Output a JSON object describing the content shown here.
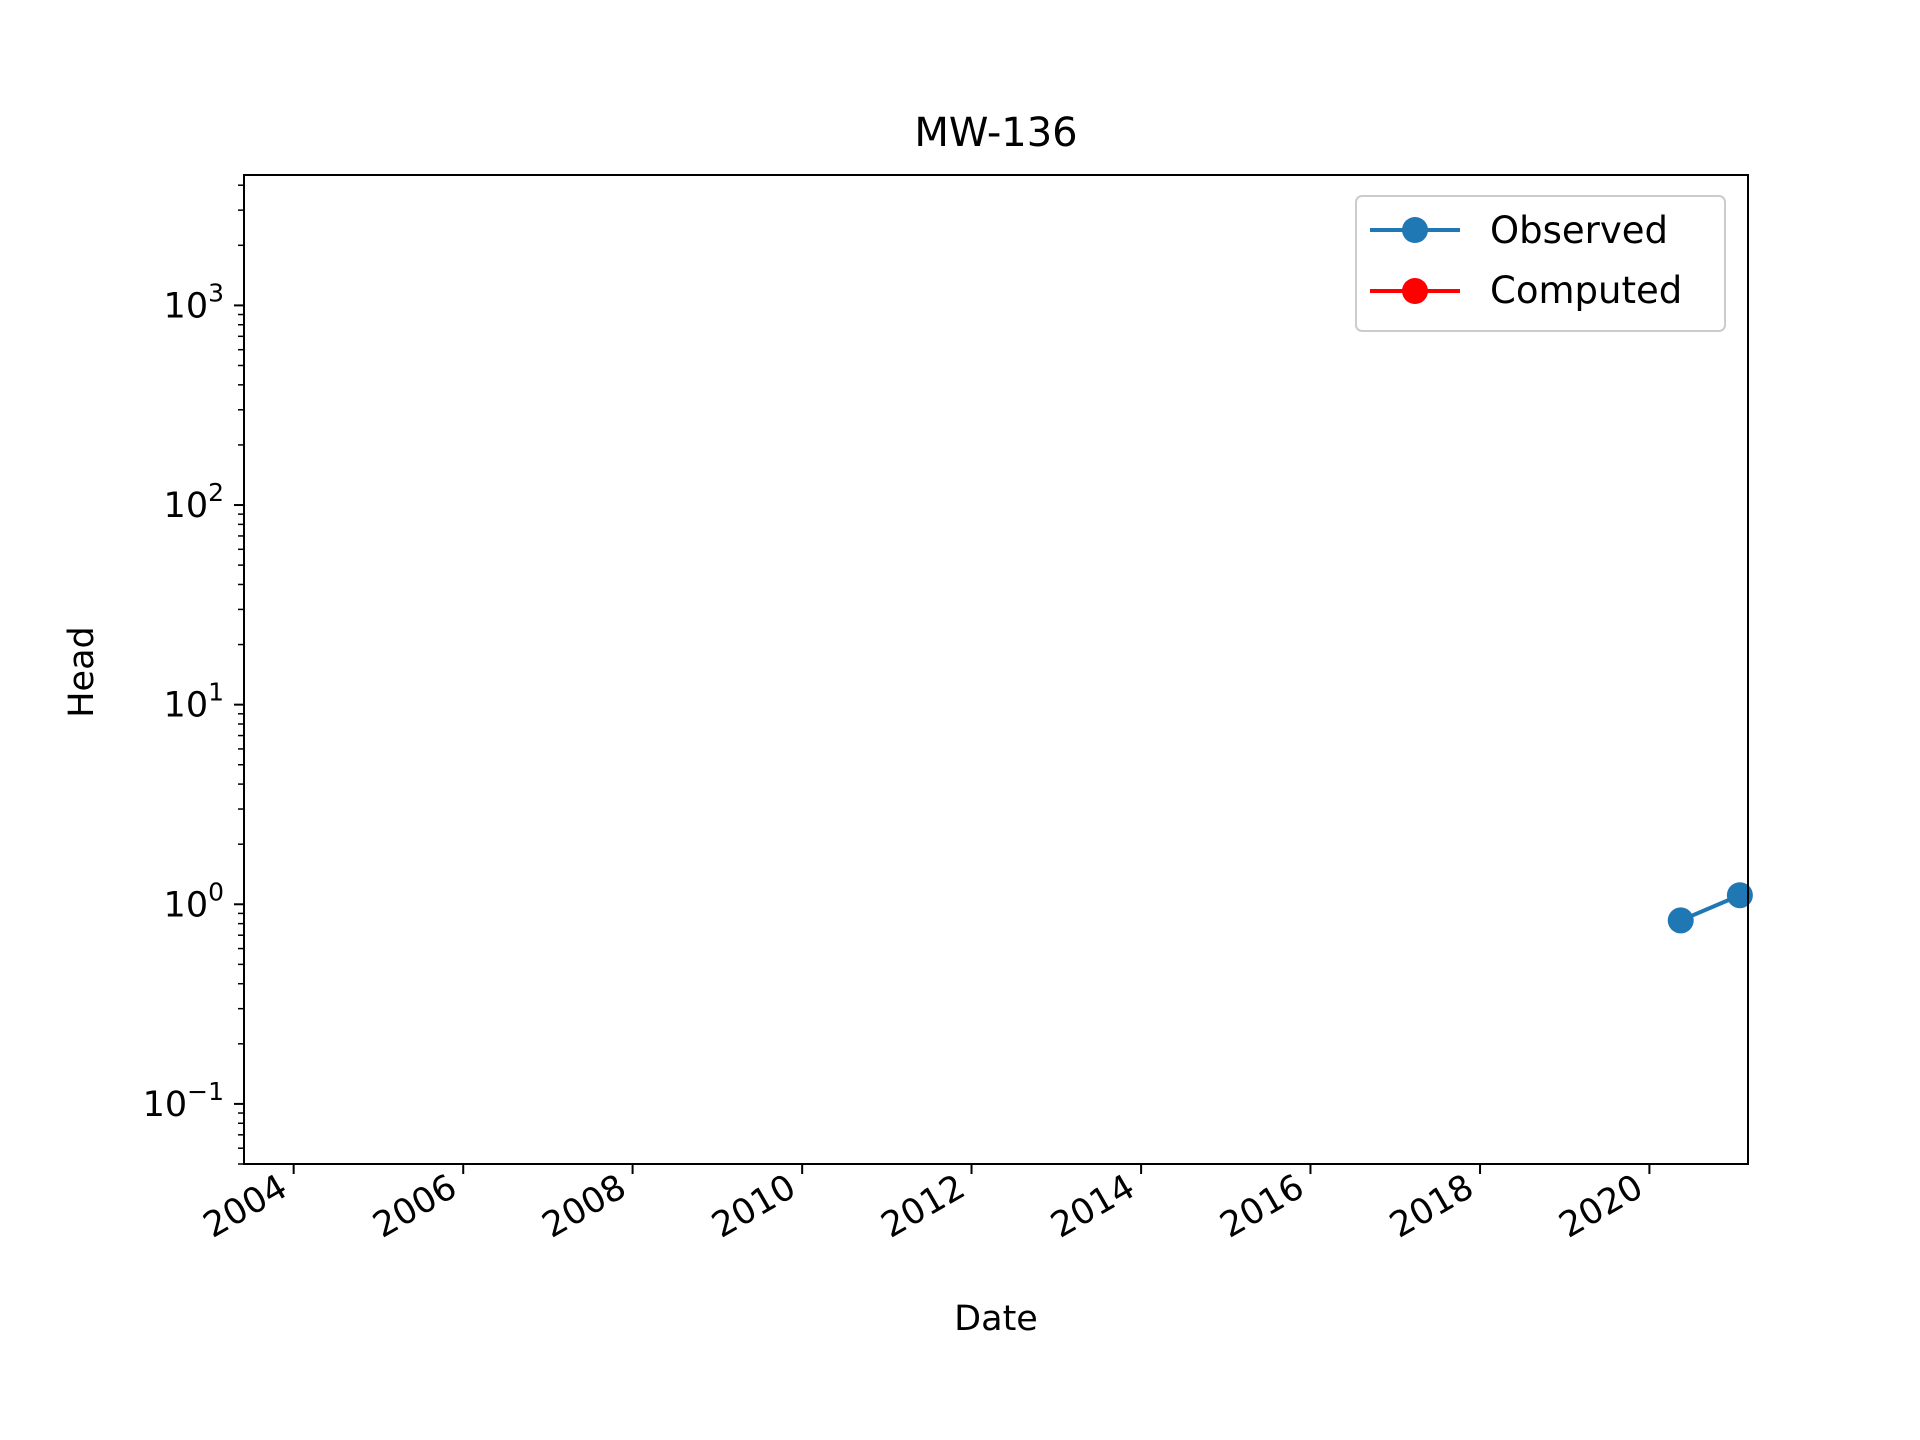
{
  "chart_data": {
    "type": "line",
    "title": "MW-136",
    "xlabel": "Date",
    "ylabel": "Head",
    "x_axis": {
      "type": "date",
      "range": [
        "2003-06-01",
        "2021-03-01"
      ],
      "ticks": [
        "2004",
        "2006",
        "2008",
        "2010",
        "2012",
        "2014",
        "2016",
        "2018",
        "2020"
      ]
    },
    "y_axis": {
      "scale": "log",
      "range": [
        0.05,
        4500
      ],
      "ticks": [
        {
          "value": 0.1,
          "base": "10",
          "exp": "−1"
        },
        {
          "value": 1,
          "base": "10",
          "exp": "0"
        },
        {
          "value": 10,
          "base": "10",
          "exp": "1"
        },
        {
          "value": 100,
          "base": "10",
          "exp": "2"
        },
        {
          "value": 1000,
          "base": "10",
          "exp": "3"
        }
      ]
    },
    "grid": false,
    "legend": "top-right",
    "series": [
      {
        "name": "Observed",
        "color": "#1f77b4",
        "marker": "circle",
        "points": [
          {
            "x": "2020-05-15",
            "y": 0.83
          },
          {
            "x": "2021-01-25",
            "y": 1.11
          }
        ]
      },
      {
        "name": "Computed",
        "color": "#ff0000",
        "marker": "circle",
        "points": []
      }
    ]
  }
}
